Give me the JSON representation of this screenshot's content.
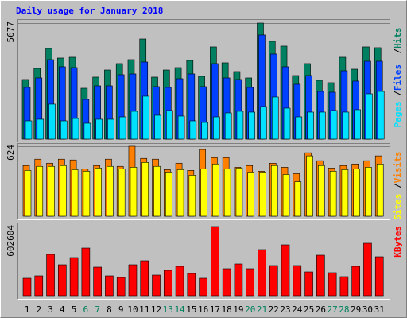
{
  "title": "Daily usage for January 2018",
  "legend_separator": "/",
  "chart_data": [
    {
      "type": "bar",
      "ylim": [
        0,
        5677
      ],
      "yticks": [
        5677
      ],
      "series": [
        {
          "name": "Hits",
          "color": "#008060",
          "values": [
            2917,
            3461,
            4434,
            3967,
            4006,
            2489,
            3034,
            3383,
            3695,
            3889,
            4900,
            3034,
            3383,
            3500,
            3850,
            3073,
            4512,
            3734,
            3306,
            2995,
            5677,
            4784,
            4551,
            3111,
            3695,
            2878,
            2762,
            4006,
            3422,
            4512,
            4473
          ]
        },
        {
          "name": "Files",
          "color": "#0040ff",
          "values": [
            2529,
            2995,
            3889,
            3540,
            3501,
            1945,
            2606,
            2606,
            3151,
            3190,
            3773,
            2567,
            2529,
            2956,
            3190,
            2567,
            3695,
            2995,
            2918,
            2529,
            5096,
            4162,
            3540,
            2684,
            3112,
            2334,
            2295,
            3345,
            2840,
            3812,
            3812
          ]
        },
        {
          "name": "Pages",
          "color": "#00e0ff",
          "values": [
            895,
            973,
            1712,
            895,
            1011,
            778,
            973,
            973,
            1089,
            1362,
            2101,
            1167,
            1401,
            1128,
            895,
            817,
            1089,
            1284,
            1362,
            1323,
            1595,
            2062,
            1517,
            1089,
            1323,
            1323,
            1401,
            1323,
            1440,
            2217,
            2334
          ]
        }
      ]
    },
    {
      "type": "bar",
      "ylim": [
        0,
        624
      ],
      "yticks": [
        624
      ],
      "series": [
        {
          "name": "Visits",
          "color": "#ff8000",
          "values": [
            452,
            509,
            473,
            509,
            502,
            423,
            452,
            509,
            445,
            624,
            516,
            509,
            416,
            473,
            409,
            595,
            523,
            523,
            437,
            452,
            402,
            473,
            437,
            380,
            566,
            495,
            430,
            452,
            466,
            495,
            538
          ]
        },
        {
          "name": "Sites",
          "color": "#ffff00",
          "values": [
            409,
            445,
            445,
            452,
            416,
            402,
            430,
            445,
            423,
            437,
            480,
            445,
            394,
            416,
            366,
            423,
            466,
            423,
            430,
            394,
            394,
            452,
            373,
            308,
            538,
            452,
            402,
            416,
            423,
            437,
            466
          ]
        }
      ]
    },
    {
      "type": "bar",
      "ylim": [
        0,
        602604
      ],
      "yticks": [
        602604
      ],
      "categories": [
        "1",
        "2",
        "3",
        "4",
        "5",
        "6",
        "7",
        "8",
        "9",
        "10",
        "11",
        "12",
        "13",
        "14",
        "15",
        "16",
        "17",
        "18",
        "19",
        "20",
        "21",
        "22",
        "23",
        "24",
        "25",
        "26",
        "27",
        "28",
        "29",
        "30",
        "31"
      ],
      "category_colors": [
        "#000000",
        "#000000",
        "#000000",
        "#000000",
        "#000000",
        "#00805c",
        "#00805c",
        "#000000",
        "#000000",
        "#000000",
        "#000000",
        "#000000",
        "#00805c",
        "#00805c",
        "#000000",
        "#000000",
        "#000000",
        "#000000",
        "#000000",
        "#00805c",
        "#00805c",
        "#000000",
        "#000000",
        "#000000",
        "#000000",
        "#000000",
        "#00805c",
        "#00805c",
        "#000000",
        "#000000",
        "#000000"
      ],
      "series": [
        {
          "name": "KBytes",
          "color": "#ff0000",
          "values": [
            152372,
            173150,
            360152,
            270114,
            332448,
            415560,
            249336,
            173150,
            159298,
            270114,
            304744,
            180076,
            221632,
            256262,
            193928,
            152372,
            602604,
            235484,
            277040,
            235484,
            401708,
            263188,
            443264,
            263188,
            207780,
            353226,
            200854,
            166224,
            256262,
            457116,
            339374
          ]
        }
      ]
    }
  ]
}
